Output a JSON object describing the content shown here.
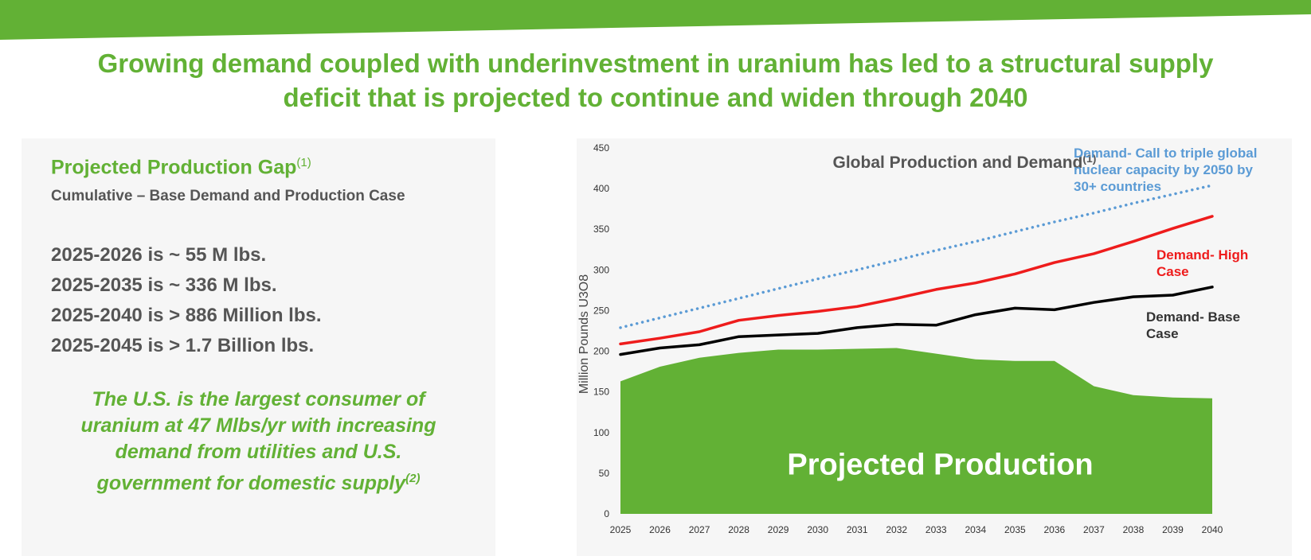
{
  "colors": {
    "brand_green": "#62b135",
    "dark_text": "#555555",
    "demand_base": "#000000",
    "demand_high": "#ee1c1c",
    "demand_triple": "#5b9bd5"
  },
  "headline": {
    "line1": "Growing demand coupled with underinvestment in uranium has led to a structural supply",
    "line2": "deficit that is projected to continue and widen through 2040"
  },
  "left_panel": {
    "title": "Projected Production Gap",
    "title_note": "(1)",
    "subtitle": "Cumulative – Base Demand and Production Case",
    "gap_items": [
      "2025-2026 is ~ 55 M lbs.",
      "2025-2035 is ~ 336 M lbs.",
      "2025-2040 is > 886 Million lbs.",
      "2025-2045 is > 1.7 Billion lbs."
    ],
    "us_note_lines": [
      "The U.S. is the largest consumer of",
      "uranium at 47 Mlbs/yr with increasing",
      "demand from utilities and U.S.",
      "government for domestic supply"
    ],
    "us_note_ref": "(2)"
  },
  "chart_data": {
    "type": "area",
    "title": "Global Production and Demand",
    "title_note": "(1)",
    "xlabel": "",
    "ylabel": "Million Pounds U3O8",
    "ylim": [
      0,
      450
    ],
    "yticks": [
      0,
      50,
      100,
      150,
      200,
      250,
      300,
      350,
      400,
      450
    ],
    "x": [
      2025,
      2026,
      2027,
      2028,
      2029,
      2030,
      2031,
      2032,
      2033,
      2034,
      2035,
      2036,
      2037,
      2038,
      2039,
      2040
    ],
    "grid": false,
    "area_label": "Projected Production",
    "series": [
      {
        "name": "Projected Production",
        "type": "area",
        "color": "#62b135",
        "values": [
          163,
          181,
          192,
          198,
          202,
          202,
          203,
          204,
          197,
          190,
          188,
          188,
          157,
          146,
          143,
          142
        ]
      },
      {
        "name": "Demand- Base Case",
        "type": "line",
        "color": "#000000",
        "values": [
          196,
          204,
          208,
          218,
          220,
          222,
          229,
          233,
          232,
          245,
          253,
          251,
          260,
          267,
          269,
          279
        ]
      },
      {
        "name": "Demand- High Case",
        "type": "line",
        "color": "#ee1c1c",
        "values": [
          209,
          216,
          224,
          238,
          244,
          249,
          255,
          265,
          276,
          284,
          295,
          309,
          320,
          335,
          351,
          366
        ]
      },
      {
        "name": "Demand- Call to triple global nuclear capacity by 2050 by 30+ countries",
        "type": "dotted-line",
        "color": "#5b9bd5",
        "values": [
          229,
          241,
          253,
          265,
          277,
          289,
          300,
          312,
          324,
          335,
          347,
          359,
          370,
          382,
          393,
          404
        ]
      }
    ],
    "annotations": {
      "triple": [
        "Demand- Call to triple global",
        "nuclear capacity by 2050 by",
        "30+ countries"
      ],
      "high": [
        "Demand- High",
        "Case"
      ],
      "base": [
        "Demand- Base",
        "Case"
      ]
    }
  }
}
